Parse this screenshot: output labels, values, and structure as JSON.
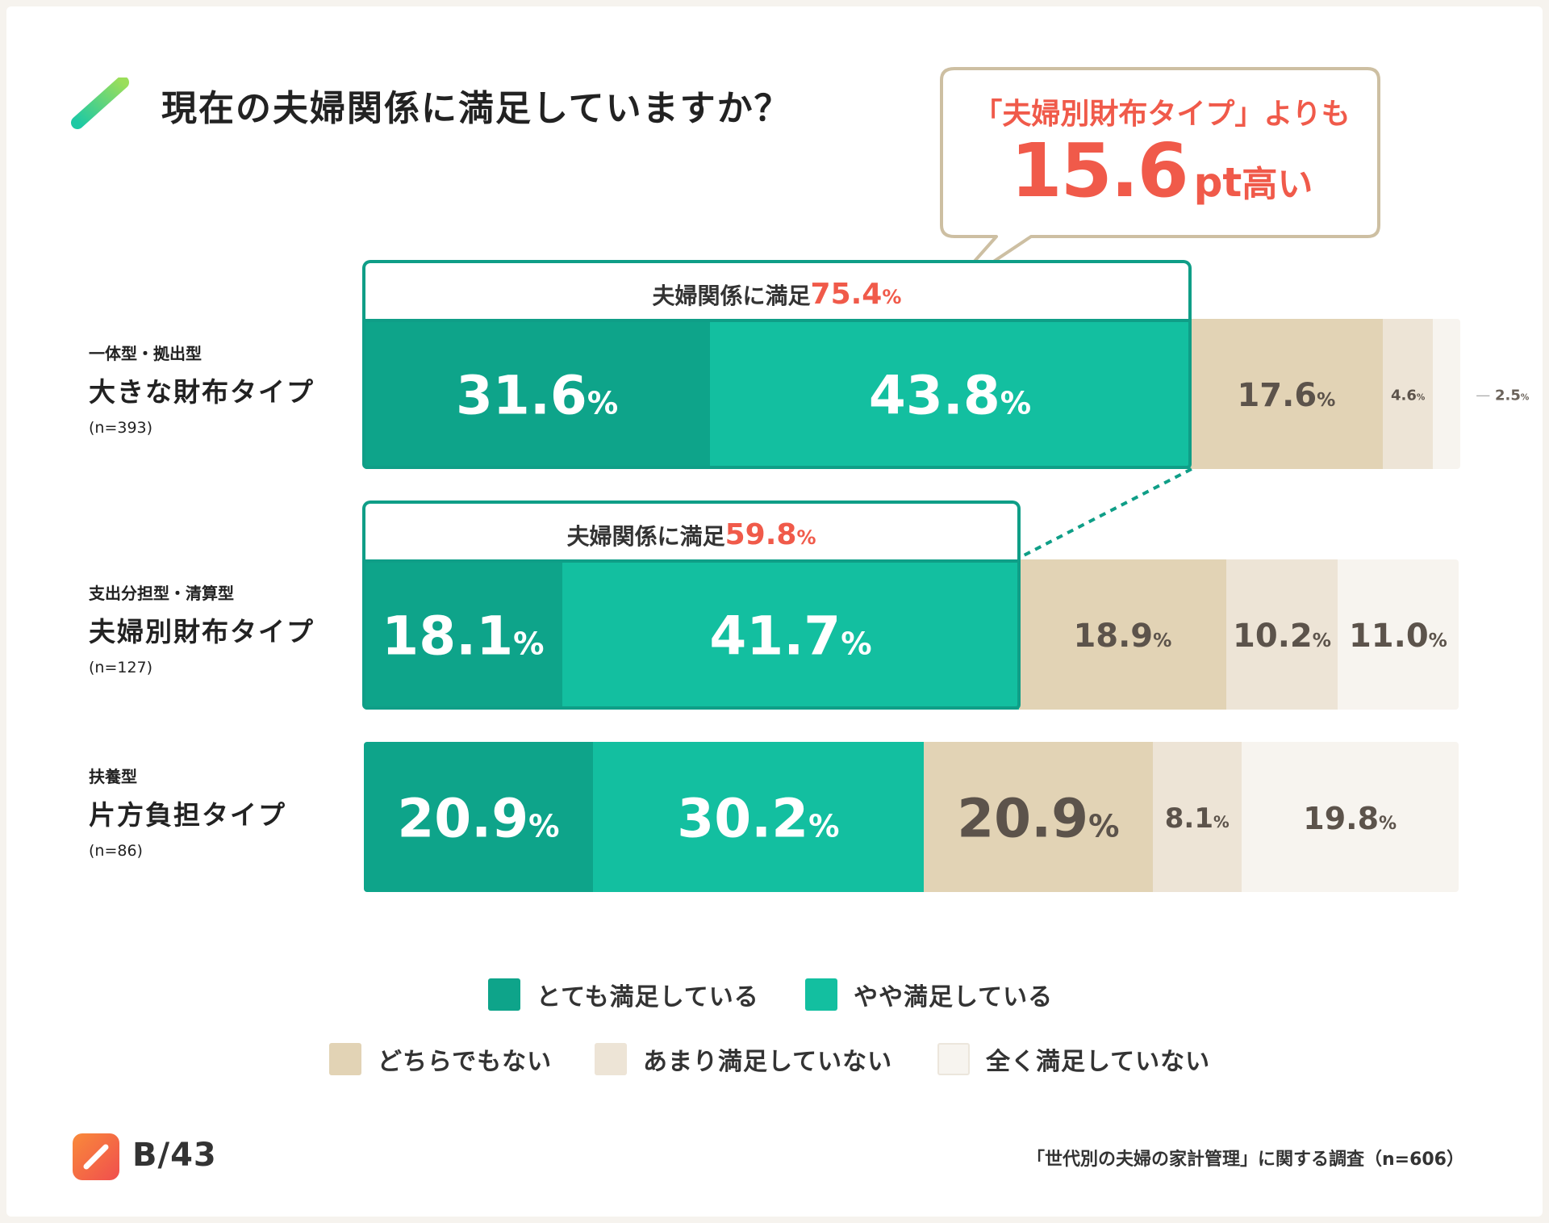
{
  "title": "現在の夫婦関係に満足していますか？",
  "callout": {
    "line1": "「夫婦別財布タイプ」よりも",
    "value": "15.6",
    "unit": "pt",
    "suffix": "高い"
  },
  "chart_data": {
    "type": "bar",
    "stacked": true,
    "orientation": "horizontal",
    "title": "現在の夫婦関係に満足していますか？",
    "unit": "%",
    "categories": [
      {
        "sub": "一体型・拠出型",
        "label": "大きな財布タイプ",
        "n": "(n=393)"
      },
      {
        "sub": "支出分担型・清算型",
        "label": "夫婦別財布タイプ",
        "n": "(n=127)"
      },
      {
        "sub": "扶養型",
        "label": "片方負担タイプ",
        "n": "(n=86)"
      }
    ],
    "series": [
      {
        "name": "とても満足している",
        "color": "#0ea48a",
        "text_color": "#ffffff",
        "values": [
          31.6,
          18.1,
          20.9
        ]
      },
      {
        "name": "やや満足している",
        "color": "#13bfa0",
        "text_color": "#ffffff",
        "values": [
          43.8,
          41.7,
          30.2
        ]
      },
      {
        "name": "どちらでもない",
        "color": "#e2d3b5",
        "text_color": "#5c534b",
        "values": [
          17.6,
          18.9,
          20.9
        ]
      },
      {
        "name": "あまり満足していない",
        "color": "#ede4d6",
        "text_color": "#5c534b",
        "values": [
          4.6,
          10.2,
          8.1
        ]
      },
      {
        "name": "全く満足していない",
        "color": "#f7f4ef",
        "text_color": "#5c534b",
        "values": [
          2.5,
          11.0,
          19.8
        ]
      }
    ],
    "satisfied_groups": [
      {
        "label": "夫婦関係に満足",
        "value": "75.4",
        "unit": "%"
      },
      {
        "label": "夫婦関係に満足",
        "value": "59.8",
        "unit": "%"
      }
    ]
  },
  "brand": {
    "name": "B/43"
  },
  "source": "「世代別の夫婦の家計管理」に関する調査（n=606）"
}
